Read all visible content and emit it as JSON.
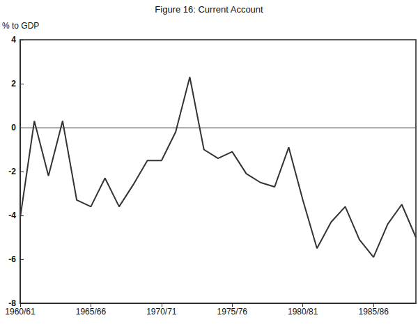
{
  "chart_data": {
    "type": "line",
    "title": "Figure 16: Current Account",
    "y_label": "% to GDP",
    "categories": [
      "1960/61",
      null,
      null,
      null,
      null,
      "1965/66",
      null,
      null,
      null,
      null,
      "1970/71",
      null,
      null,
      null,
      null,
      "1975/76",
      null,
      null,
      null,
      null,
      "1980/81",
      null,
      null,
      null,
      null,
      "1985/86",
      null,
      null,
      null
    ],
    "values": [
      -4.1,
      0.3,
      -2.2,
      0.3,
      -3.3,
      -3.6,
      -2.3,
      -3.6,
      -2.6,
      -1.5,
      -1.5,
      -0.2,
      2.3,
      -1.0,
      -1.4,
      -1.1,
      -2.1,
      -2.5,
      -2.7,
      -0.9,
      -3.3,
      -5.5,
      -4.3,
      -3.6,
      -5.1,
      -5.9,
      -4.4,
      -3.5,
      -5.0
    ],
    "color": "#333333",
    "ylim": [
      -8,
      4
    ],
    "yticks": [
      -8,
      -6,
      -4,
      -2,
      0,
      2,
      4
    ],
    "grid": false
  }
}
